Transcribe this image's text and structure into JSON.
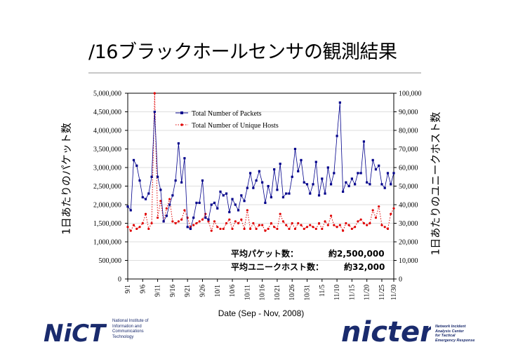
{
  "slide": {
    "title": "/16ブラックホールセンサの観測結果",
    "footer": {
      "nict_logo_text": "NiCT",
      "nict_lines": [
        "National Institute of",
        "Information and",
        "Communications",
        "Technology"
      ],
      "nicter_logo_text": "nicter",
      "nicter_lines": [
        "Network Incident",
        "Analysis Center",
        "for Tactical",
        "Emergency Response"
      ]
    }
  },
  "colors": {
    "packets": "#00008b",
    "hosts": "#e00000"
  },
  "chart_data": {
    "type": "line",
    "xlabel": "Date (Sep - Nov, 2008)",
    "ylabel_left": "1日あたりのパケット数",
    "ylabel_right": "1日あたりのユニークホスト数",
    "left_axis": {
      "min": 0,
      "max": 5000000,
      "step": 500000,
      "tick_labels": [
        "0",
        "500,000",
        "1,000,000",
        "1,500,000",
        "2,000,000",
        "2,500,000",
        "3,000,000",
        "3,500,000",
        "4,000,000",
        "4,500,000",
        "5,000,000"
      ]
    },
    "right_axis": {
      "min": 0,
      "max": 100000,
      "step": 10000,
      "tick_labels": [
        "0",
        "10,000",
        "20,000",
        "30,000",
        "40,000",
        "50,000",
        "60,000",
        "70,000",
        "80,000",
        "90,000",
        "100,000"
      ]
    },
    "x_tick_labels": [
      "9/1",
      "9/6",
      "9/11",
      "9/16",
      "9/21",
      "9/26",
      "10/1",
      "10/6",
      "10/11",
      "10/16",
      "10/21",
      "10/26",
      "10/31",
      "11/5",
      "11/10",
      "11/15",
      "11/20",
      "11/25",
      "11/30"
    ],
    "legend": {
      "position": "top-left",
      "entries": [
        "Total Number of Packets",
        "Total Number of Unique Hosts"
      ]
    },
    "grid": "horizontal",
    "annotation": {
      "line1_label": "平均パケット数：",
      "line1_value": "約2,500,000",
      "line2_label": "平均ユニークホスト数：",
      "line2_value": "約32,000"
    },
    "series": [
      {
        "name": "Total Number of Packets",
        "axis": "left",
        "values": [
          1950000,
          1850000,
          3200000,
          3050000,
          2650000,
          2200000,
          2150000,
          2300000,
          2750000,
          4500000,
          2750000,
          2400000,
          1550000,
          1700000,
          2000000,
          2250000,
          2650000,
          3650000,
          2600000,
          3250000,
          1400000,
          1350000,
          1650000,
          2050000,
          2050000,
          2650000,
          1650000,
          1600000,
          2000000,
          2050000,
          1900000,
          2350000,
          2250000,
          2300000,
          1800000,
          2150000,
          2000000,
          1850000,
          2250000,
          2100000,
          2450000,
          2850000,
          2450000,
          2650000,
          2900000,
          2600000,
          2050000,
          2500000,
          2200000,
          2950000,
          2400000,
          3100000,
          2200000,
          2300000,
          2300000,
          2750000,
          3500000,
          2900000,
          3200000,
          2600000,
          2550000,
          2300000,
          2550000,
          3150000,
          2250000,
          2700000,
          2300000,
          3000000,
          2550000,
          2850000,
          3850000,
          4750000,
          2350000,
          2600000,
          2500000,
          2700000,
          2550000,
          2850000,
          2850000,
          3700000,
          2600000,
          2550000,
          3200000,
          2950000,
          3050000,
          2550000,
          2450000,
          2850000,
          2550000,
          2850000
        ]
      },
      {
        "name": "Total Number of Unique Hosts",
        "axis": "left",
        "values": [
          1400000,
          1300000,
          1450000,
          1350000,
          1400000,
          1500000,
          1750000,
          1350000,
          1500000,
          5000000,
          1650000,
          2100000,
          1550000,
          1900000,
          2150000,
          1550000,
          1500000,
          1550000,
          1600000,
          1850000,
          1650000,
          1400000,
          1450000,
          1500000,
          1550000,
          1600000,
          1750000,
          1550000,
          1300000,
          1550000,
          1400000,
          1350000,
          1350000,
          1500000,
          1600000,
          1350000,
          1550000,
          1500000,
          1600000,
          1350000,
          1850000,
          1350000,
          1500000,
          1350000,
          1450000,
          1450000,
          1300000,
          1350000,
          1500000,
          1400000,
          1350000,
          1750000,
          1550000,
          1450000,
          1350000,
          1500000,
          1350000,
          1500000,
          1450000,
          1350000,
          1400000,
          1450000,
          1400000,
          1350000,
          1500000,
          1350000,
          1550000,
          1450000,
          1700000,
          1450000,
          1400000,
          1450000,
          1300000,
          1500000,
          1450000,
          1350000,
          1400000,
          1550000,
          1600000,
          1500000,
          1450000,
          1500000,
          1850000,
          1650000,
          1950000,
          1450000,
          1400000,
          1350000,
          1750000,
          1900000
        ]
      }
    ]
  }
}
